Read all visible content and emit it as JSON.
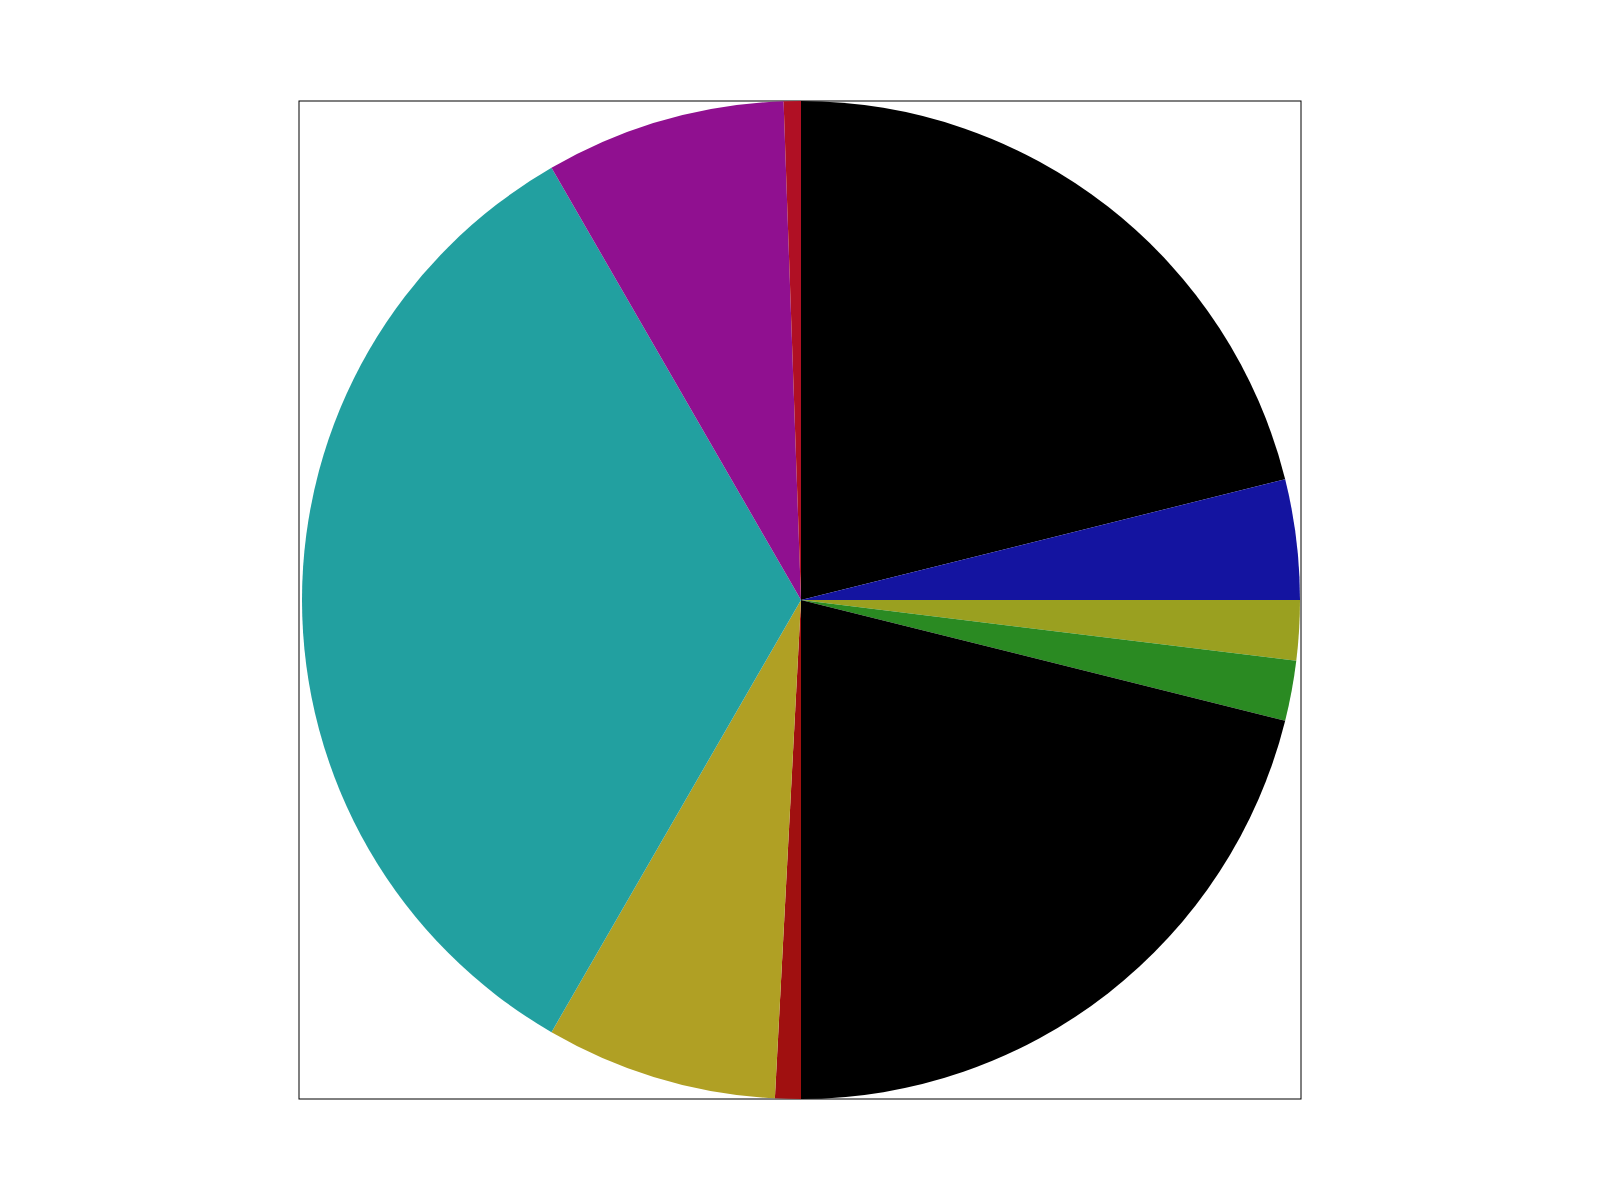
{
  "chart_data": {
    "type": "pie",
    "values": [
      76,
      14,
      7,
      7,
      76,
      3,
      27,
      120,
      28,
      2
    ],
    "colors": [
      "#000000",
      "#1414a0",
      "#9aa020",
      "#2a8a22",
      "#000000",
      "#a01010",
      "#b0a024",
      "#22a0a0",
      "#901090",
      "#b01024"
    ]
  }
}
